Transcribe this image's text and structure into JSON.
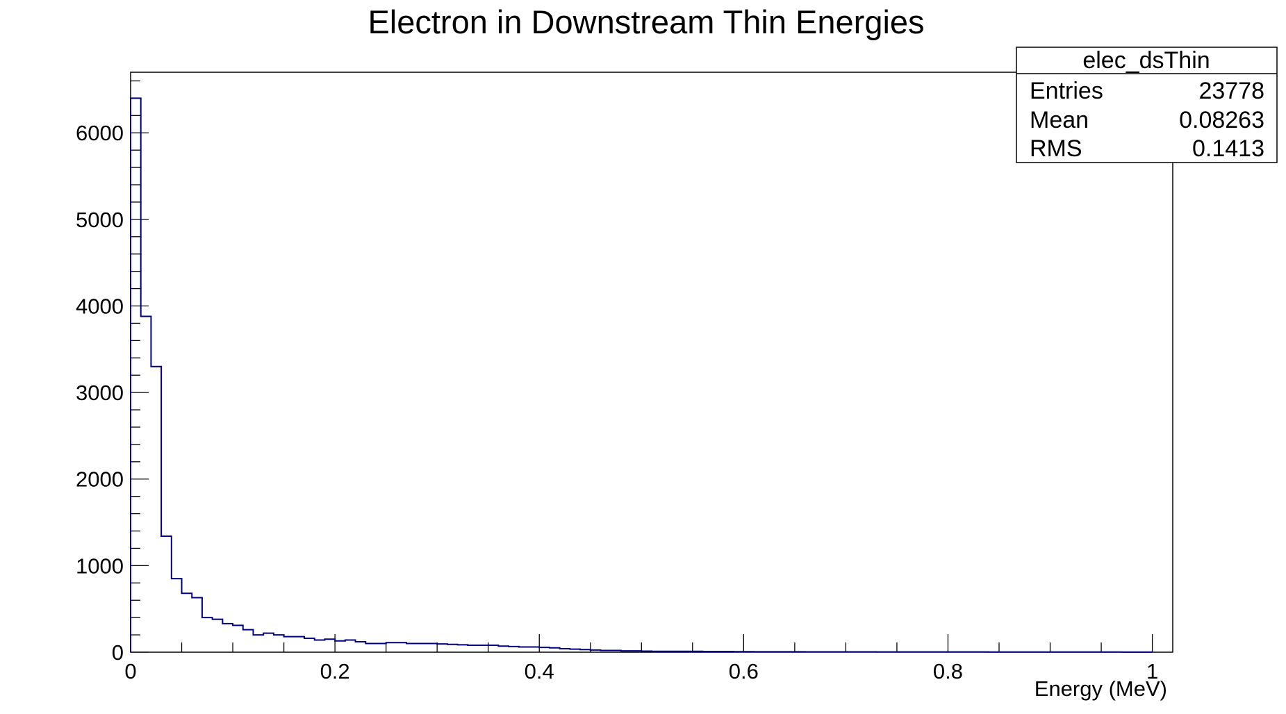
{
  "chart_data": {
    "type": "histogram",
    "title": "Electron in Downstream Thin Energies",
    "xlabel": "Energy (MeV)",
    "ylabel": "",
    "xlim": [
      0,
      1.02
    ],
    "ylim": [
      0,
      6700
    ],
    "x_ticks": [
      0,
      0.2,
      0.4,
      0.6,
      0.8,
      1
    ],
    "x_tick_labels": [
      "0",
      "0.2",
      "0.4",
      "0.6",
      "0.8",
      "1"
    ],
    "y_ticks": [
      0,
      1000,
      2000,
      3000,
      4000,
      5000,
      6000
    ],
    "y_tick_labels": [
      "0",
      "1000",
      "2000",
      "3000",
      "4000",
      "5000",
      "6000"
    ],
    "grid": false,
    "line_color": "#000080",
    "bin_width": 0.01,
    "bin_start": 0,
    "values": [
      6400,
      3880,
      3300,
      1340,
      850,
      680,
      630,
      400,
      380,
      330,
      310,
      260,
      200,
      220,
      200,
      180,
      180,
      160,
      140,
      150,
      130,
      140,
      120,
      100,
      100,
      110,
      110,
      100,
      100,
      100,
      95,
      90,
      85,
      80,
      80,
      80,
      70,
      65,
      60,
      60,
      55,
      50,
      40,
      35,
      30,
      25,
      20,
      20,
      15,
      15,
      12,
      10,
      10,
      10,
      10,
      10,
      8,
      8,
      8,
      6,
      6,
      5,
      5,
      5,
      5,
      5,
      4,
      4,
      4,
      4,
      4,
      4,
      4,
      3,
      3,
      3,
      3,
      3,
      3,
      3,
      3,
      3,
      3,
      3,
      2,
      2,
      2,
      2,
      2,
      2,
      2,
      2,
      2,
      2,
      2,
      2,
      2,
      1,
      1,
      1
    ]
  },
  "stats_box": {
    "name": "elec_dsThin",
    "rows": [
      {
        "label": "Entries",
        "value": "23778"
      },
      {
        "label": "Mean",
        "value": "0.08263"
      },
      {
        "label": "RMS",
        "value": "0.1413"
      }
    ]
  }
}
